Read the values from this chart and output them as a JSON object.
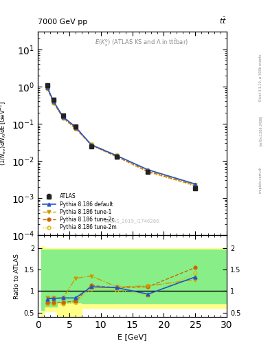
{
  "title_top": "7000 GeV pp",
  "title_right": "tt̅",
  "plot_title": "E(K$_s^0$) (ATLAS KS and $\\Lambda$ in tt̅bar)",
  "watermark": "ATLAS_2019_I1746286",
  "rivet_label": "Rivet 3.1.10, ≥ 500k events",
  "arxiv_label": "[arXiv:1306.3436]",
  "mcplots_label": "mcplots.cern.ch",
  "xlabel": "E [GeV]",
  "ylabel_ratio": "Ratio to ATLAS",
  "xlim": [
    0,
    30
  ],
  "ylim_main": [
    0.0001,
    30
  ],
  "ylim_ratio": [
    0.4,
    2.3
  ],
  "atlas_x": [
    1.5,
    2.5,
    4.0,
    6.0,
    8.5,
    12.5,
    17.5,
    25.0
  ],
  "atlas_y": [
    1.1,
    0.45,
    0.17,
    0.085,
    0.025,
    0.013,
    0.005,
    0.0018
  ],
  "atlas_yerr": [
    0.05,
    0.02,
    0.008,
    0.004,
    0.001,
    0.0006,
    0.0002,
    8e-05
  ],
  "pythia_default_y": [
    0.97,
    0.4,
    0.155,
    0.082,
    0.027,
    0.014,
    0.0058,
    0.0024
  ],
  "pythia_tune1_y": [
    0.92,
    0.38,
    0.15,
    0.08,
    0.028,
    0.014,
    0.0055,
    0.0023
  ],
  "pythia_tune2c_y": [
    0.9,
    0.37,
    0.145,
    0.075,
    0.027,
    0.013,
    0.0052,
    0.0022
  ],
  "pythia_tune2m_y": [
    0.88,
    0.36,
    0.14,
    0.073,
    0.026,
    0.013,
    0.005,
    0.0021
  ],
  "ratio_default_y": [
    0.82,
    0.83,
    0.84,
    0.84,
    1.1,
    1.08,
    0.93,
    1.33
  ],
  "ratio_tune1_y": [
    0.84,
    0.84,
    0.84,
    1.3,
    1.35,
    1.1,
    1.12,
    1.27
  ],
  "ratio_tune2c_y": [
    0.73,
    0.73,
    0.74,
    0.77,
    1.13,
    1.08,
    1.1,
    1.55
  ],
  "ratio_tune2m_y": [
    0.7,
    0.7,
    0.7,
    0.73,
    1.06,
    1.03,
    0.9,
    1.42
  ],
  "band_x_edges": [
    0.5,
    1.0,
    3.0,
    7.0,
    16.0,
    22.5,
    30.0
  ],
  "yellow_low": [
    0.4,
    0.53,
    0.42,
    0.6,
    0.6,
    0.6
  ],
  "yellow_high": [
    2.05,
    2.0,
    2.0,
    2.0,
    2.0,
    2.0
  ],
  "green_low": [
    0.56,
    0.63,
    0.73,
    0.72,
    0.72,
    0.72
  ],
  "green_high": [
    1.97,
    1.97,
    1.97,
    1.97,
    1.97,
    1.97
  ],
  "color_atlas": "#222222",
  "color_default": "#2255cc",
  "color_tune1": "#cc9900",
  "color_tune2c": "#cc6600",
  "color_tune2m": "#ddbb00",
  "color_yellow": "#ffff88",
  "color_green": "#88ee88"
}
